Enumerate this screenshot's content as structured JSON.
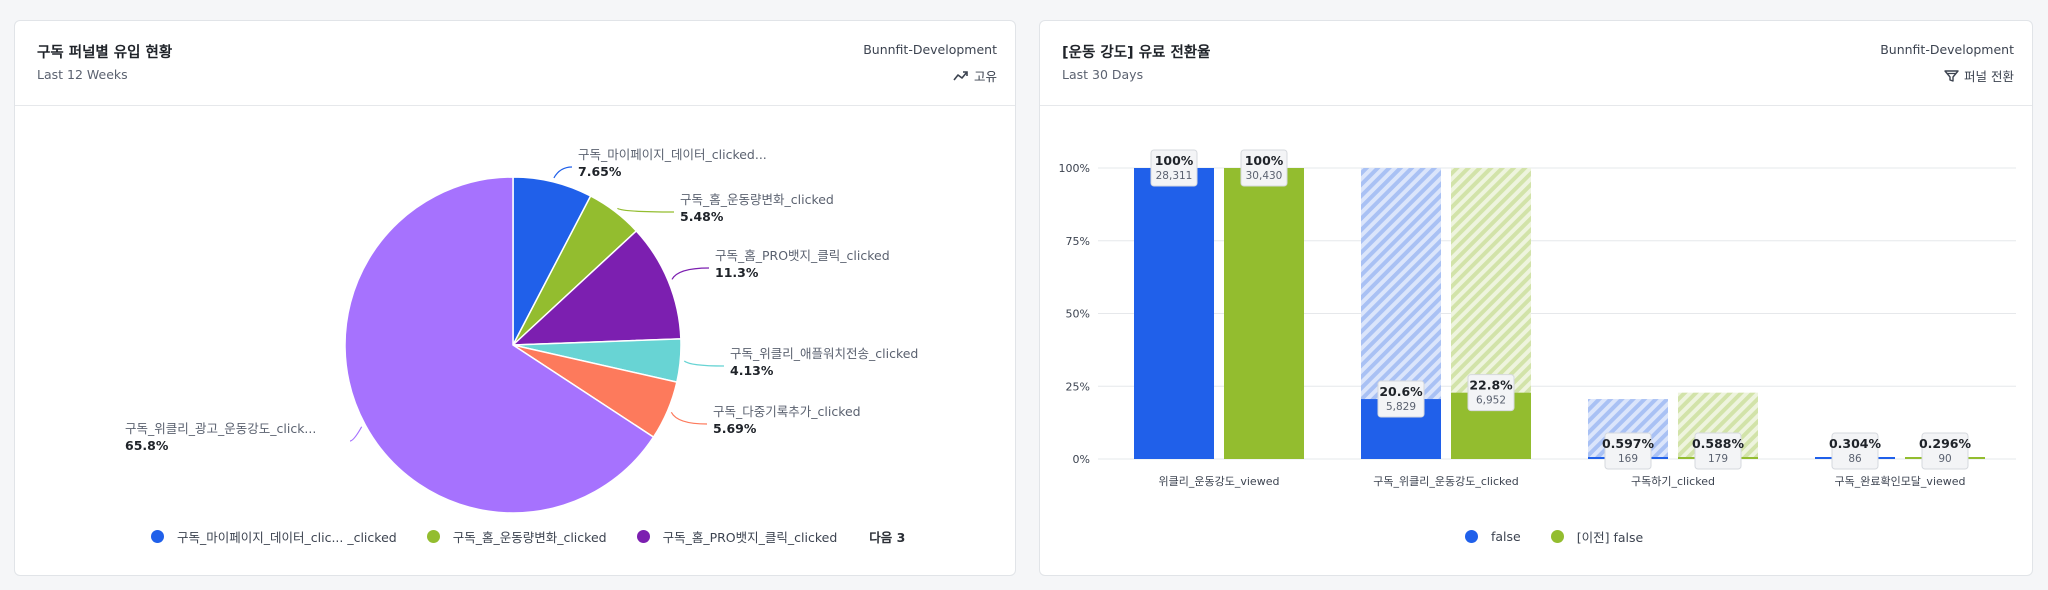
{
  "left_card": {
    "title": "구독 퍼널별 유입 현황",
    "subtitle": "Last 12 Weeks",
    "project": "Bunnfit-Development",
    "metric_icon": "trend-line-icon",
    "metric_label": "고유",
    "legend": [
      {
        "label": "구독_마이페이지_데이터_clic... _clicked",
        "color": "#2060ea"
      },
      {
        "label": "구독_홈_운동량변화_clicked",
        "color": "#93bd2f"
      },
      {
        "label": "구독_홈_PRO뱃지_클릭_clicked",
        "color": "#7c1fb0"
      }
    ],
    "legend_more": "다음 3"
  },
  "right_card": {
    "title": "[운동 강도] 유료 전환율",
    "subtitle": "Last 30 Days",
    "project": "Bunnfit-Development",
    "metric_icon": "funnel-icon",
    "metric_label": "퍼널 전환",
    "legend": [
      {
        "label": "false",
        "color": "#2060ea"
      },
      {
        "label": "[이전] false",
        "color": "#93bd2f"
      }
    ]
  },
  "chart_data": [
    {
      "type": "pie",
      "title": "구독 퍼널별 유입 현황",
      "slices": [
        {
          "label": "구독_마이페이지_데이터_clicked...",
          "value": 7.65,
          "display": "7.65%",
          "color": "#2060ea"
        },
        {
          "label": "구독_홈_운동량변화_clicked",
          "value": 5.48,
          "display": "5.48%",
          "color": "#93bd2f"
        },
        {
          "label": "구독_홈_PRO뱃지_클릭_clicked",
          "value": 11.3,
          "display": "11.3%",
          "color": "#7c1fb0"
        },
        {
          "label": "구독_위클리_애플워치전송_clicked",
          "value": 4.13,
          "display": "4.13%",
          "color": "#68d4d4"
        },
        {
          "label": "구독_다중기록추가_clicked",
          "value": 5.69,
          "display": "5.69%",
          "color": "#fd7a5c"
        },
        {
          "label": "구독_위클리_광고_운동강도_click...",
          "value": 65.8,
          "display": "65.8%",
          "color": "#a672fe"
        }
      ]
    },
    {
      "type": "bar",
      "title": "[운동 강도] 유료 전환율",
      "categories": [
        "위클리_운동강도_viewed",
        "구독_위클리_운동강도_clicked",
        "구독하기_clicked",
        "구독_완료확인모달_viewed"
      ],
      "ylim": [
        0,
        100
      ],
      "yticks": [
        "0%",
        "25%",
        "50%",
        "75%",
        "100%"
      ],
      "grid": true,
      "series": [
        {
          "name": "false",
          "color": "#2060ea",
          "values": [
            100,
            20.6,
            0.597,
            0.304
          ],
          "labels": [
            "100%",
            "20.6%",
            "0.597%",
            "0.304%"
          ],
          "counts": [
            "28,311",
            "5,829",
            "169",
            "86"
          ],
          "dropoff_top": [
            100,
            100,
            20.6,
            0.597
          ]
        },
        {
          "name": "[이전] false",
          "color": "#93bd2f",
          "values": [
            100,
            22.8,
            0.588,
            0.296
          ],
          "labels": [
            "100%",
            "22.8%",
            "0.588%",
            "0.296%"
          ],
          "counts": [
            "30,430",
            "6,952",
            "179",
            "90"
          ],
          "dropoff_top": [
            100,
            100,
            22.8,
            0.588
          ]
        }
      ]
    }
  ]
}
